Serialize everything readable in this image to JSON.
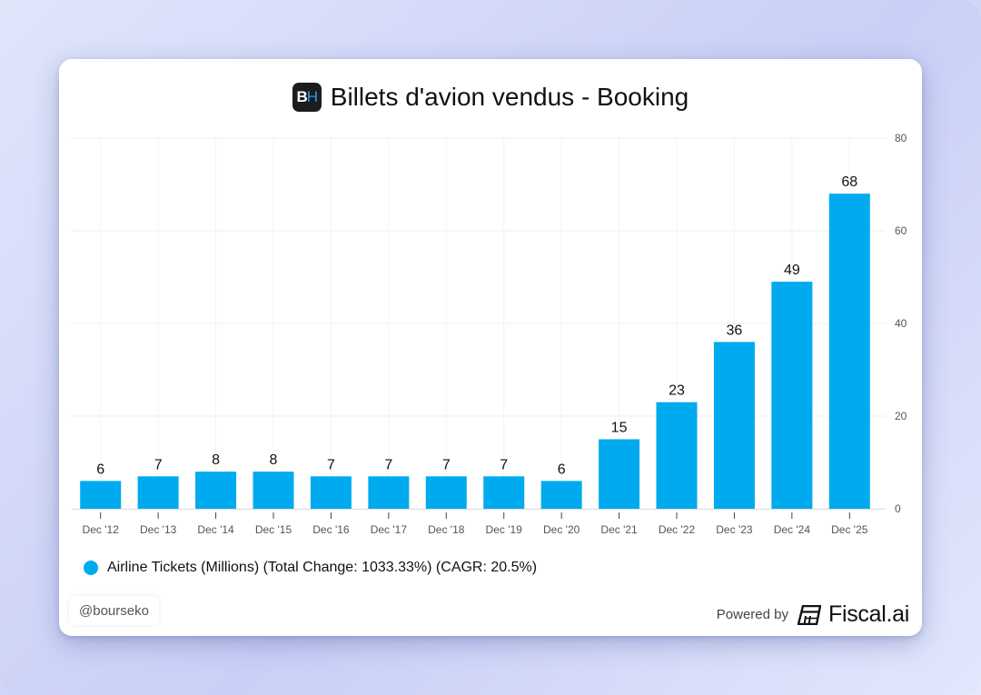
{
  "header": {
    "logo_text_primary": "B",
    "logo_text_secondary": "H",
    "title": "Billets d'avion vendus - Booking"
  },
  "colors": {
    "bar": "#00aaee",
    "grid": "#efefef",
    "axis_text": "#555555",
    "label_text": "#111111"
  },
  "chart_data": {
    "type": "bar",
    "title": "Billets d'avion vendus - Booking",
    "xlabel": "",
    "ylabel": "",
    "categories": [
      "Dec '12",
      "Dec '13",
      "Dec '14",
      "Dec '15",
      "Dec '16",
      "Dec '17",
      "Dec '18",
      "Dec '19",
      "Dec '20",
      "Dec '21",
      "Dec '22",
      "Dec '23",
      "Dec '24",
      "Dec '25"
    ],
    "series": [
      {
        "name": "Airline Tickets (Millions)",
        "values": [
          6,
          7,
          8,
          8,
          7,
          7,
          7,
          7,
          6,
          15,
          23,
          36,
          49,
          68
        ],
        "data_labels": [
          "6",
          "7",
          "8",
          "8",
          "7",
          "7",
          "7",
          "7",
          "6",
          "15",
          "23",
          "36",
          "49",
          "68"
        ]
      }
    ],
    "ylim": [
      0,
      80
    ],
    "yticks": [
      0,
      20,
      40,
      60,
      80
    ],
    "y_axis_side": "right",
    "grid": true,
    "legend_position": "bottom-left"
  },
  "legend": {
    "label": "Airline Tickets (Millions) (Total Change: 1033.33%) (CAGR: 20.5%)"
  },
  "footer": {
    "handle": "@bourseko",
    "powered_by": "Powered by",
    "brand": "Fiscal.ai"
  }
}
